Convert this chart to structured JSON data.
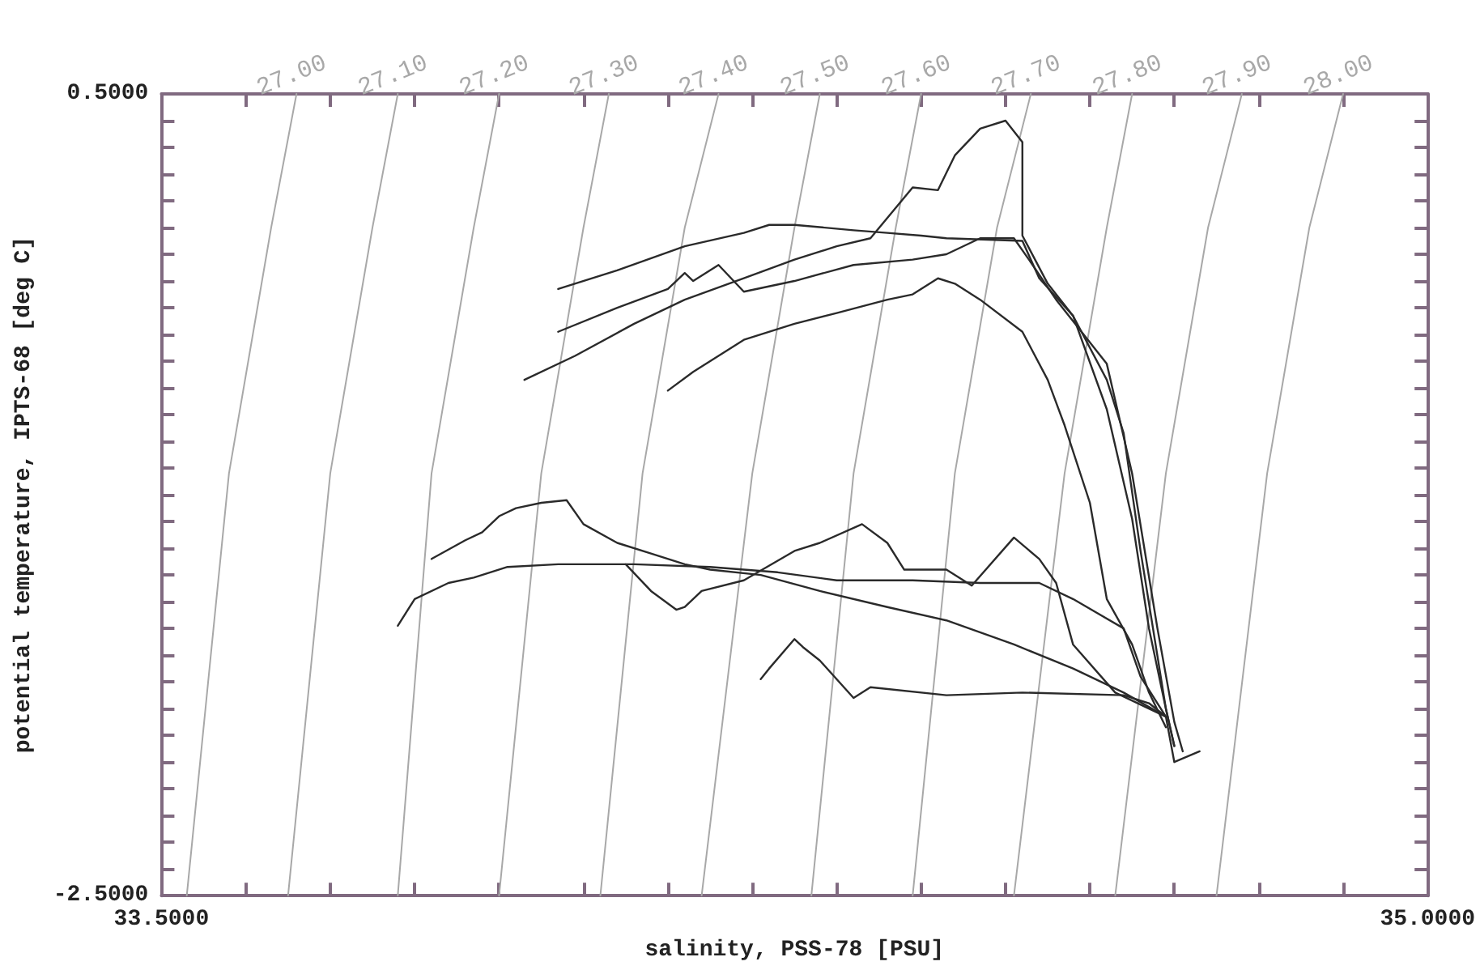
{
  "chart_data": {
    "type": "line",
    "xlabel": "salinity, PSS-78 [PSU]",
    "ylabel": "potential temperature, IPTS-68 [deg C]",
    "xlim": [
      33.5,
      35.0
    ],
    "ylim": [
      -2.5,
      0.5
    ],
    "xticks": [
      {
        "value": 33.5,
        "label": "33.5000"
      },
      {
        "value": 33.6,
        "label": null
      },
      {
        "value": 33.7,
        "label": null
      },
      {
        "value": 33.8,
        "label": null
      },
      {
        "value": 33.9,
        "label": null
      },
      {
        "value": 34.0,
        "label": null
      },
      {
        "value": 34.1,
        "label": null
      },
      {
        "value": 34.2,
        "label": null
      },
      {
        "value": 34.3,
        "label": null
      },
      {
        "value": 34.4,
        "label": null
      },
      {
        "value": 34.5,
        "label": null
      },
      {
        "value": 34.6,
        "label": null
      },
      {
        "value": 34.7,
        "label": null
      },
      {
        "value": 34.8,
        "label": null
      },
      {
        "value": 34.9,
        "label": null
      },
      {
        "value": 35.0,
        "label": "35.0000"
      }
    ],
    "yticks": [
      {
        "value": 0.5,
        "label": "0.5000"
      },
      {
        "value": 0.4,
        "label": null
      },
      {
        "value": 0.3,
        "label": null
      },
      {
        "value": 0.2,
        "label": null
      },
      {
        "value": 0.1,
        "label": null
      },
      {
        "value": 0,
        "label": null
      },
      {
        "value": -0.1,
        "label": null
      },
      {
        "value": -0.2,
        "label": null
      },
      {
        "value": -0.3,
        "label": null
      },
      {
        "value": -0.4,
        "label": null
      },
      {
        "value": -0.5,
        "label": null
      },
      {
        "value": -0.6,
        "label": null
      },
      {
        "value": -0.7,
        "label": null
      },
      {
        "value": -0.8,
        "label": null
      },
      {
        "value": -0.9,
        "label": null
      },
      {
        "value": -1.0,
        "label": null
      },
      {
        "value": -1.1,
        "label": null
      },
      {
        "value": -1.2,
        "label": null
      },
      {
        "value": -1.3,
        "label": null
      },
      {
        "value": -1.4,
        "label": null
      },
      {
        "value": -1.5,
        "label": null
      },
      {
        "value": -1.6,
        "label": null
      },
      {
        "value": -1.7,
        "label": null
      },
      {
        "value": -1.8,
        "label": null
      },
      {
        "value": -1.9,
        "label": null
      },
      {
        "value": -2.0,
        "label": null
      },
      {
        "value": -2.1,
        "label": null
      },
      {
        "value": -2.2,
        "label": null
      },
      {
        "value": -2.3,
        "label": null
      },
      {
        "value": -2.4,
        "label": null
      },
      {
        "value": -2.5,
        "label": "-2.5000"
      }
    ],
    "grid": false,
    "legend": false,
    "marker": "none",
    "line_style": "solid",
    "series": [
      {
        "name": "27.00",
        "color": "#a8a8a8",
        "x": [
          33.66,
          33.63,
          33.58,
          33.53
        ],
        "values": [
          0.5,
          0.0,
          -0.92,
          -2.5
        ]
      },
      {
        "name": "27.10",
        "color": "#a8a8a8",
        "x": [
          33.78,
          33.75,
          33.7,
          33.65
        ],
        "values": [
          0.5,
          0.0,
          -0.92,
          -2.5
        ]
      },
      {
        "name": "27.20",
        "color": "#a8a8a8",
        "x": [
          33.9,
          33.87,
          33.82,
          33.78
        ],
        "values": [
          0.5,
          0.0,
          -0.92,
          -2.5
        ]
      },
      {
        "name": "27.30",
        "color": "#a8a8a8",
        "x": [
          34.03,
          34.0,
          33.95,
          33.9
        ],
        "values": [
          0.5,
          0.0,
          -0.92,
          -2.5
        ]
      },
      {
        "name": "27.40",
        "color": "#a8a8a8",
        "x": [
          34.16,
          34.12,
          34.07,
          34.02
        ],
        "values": [
          0.5,
          0.0,
          -0.92,
          -2.5
        ]
      },
      {
        "name": "27.50",
        "color": "#a8a8a8",
        "x": [
          34.28,
          34.25,
          34.2,
          34.14
        ],
        "values": [
          0.5,
          0.0,
          -0.92,
          -2.5
        ]
      },
      {
        "name": "27.60",
        "color": "#a8a8a8",
        "x": [
          34.4,
          34.37,
          34.32,
          34.27
        ],
        "values": [
          0.5,
          0.0,
          -0.92,
          -2.5
        ]
      },
      {
        "name": "27.70",
        "color": "#a8a8a8",
        "x": [
          34.53,
          34.49,
          34.44,
          34.39
        ],
        "values": [
          0.5,
          0.0,
          -0.92,
          -2.5
        ]
      },
      {
        "name": "27.80",
        "color": "#a8a8a8",
        "x": [
          34.65,
          34.62,
          34.57,
          34.51
        ],
        "values": [
          0.5,
          0.0,
          -0.92,
          -2.5
        ]
      },
      {
        "name": "27.90",
        "color": "#a8a8a8",
        "x": [
          34.78,
          34.74,
          34.69,
          34.63
        ],
        "values": [
          0.5,
          0.0,
          -0.92,
          -2.5
        ]
      },
      {
        "name": "28.00",
        "color": "#a8a8a8",
        "x": [
          34.9,
          34.86,
          34.81,
          34.75
        ],
        "values": [
          0.5,
          0.0,
          -0.92,
          -2.5
        ]
      },
      {
        "color": "#2a2a2a",
        "x": [
          33.97,
          34.04,
          34.12,
          34.19,
          34.22,
          34.25,
          34.32,
          34.36,
          34.4,
          34.43,
          34.52,
          34.54,
          34.58,
          34.62,
          34.65,
          34.67,
          34.69,
          34.7
        ],
        "values": [
          -0.23,
          -0.16,
          -0.07,
          -0.02,
          0.01,
          0.01,
          -0.01,
          -0.02,
          -0.03,
          -0.04,
          -0.05,
          -0.19,
          -0.33,
          -0.68,
          -1.09,
          -1.5,
          -1.8,
          -1.94
        ]
      },
      {
        "color": "#2a2a2a",
        "x": [
          33.97,
          34.04,
          34.1,
          34.12,
          34.13,
          34.16,
          34.19,
          34.25,
          34.32,
          34.39,
          34.43,
          34.47,
          34.51,
          34.53,
          34.56,
          34.62,
          34.65,
          34.68,
          34.7,
          34.71
        ],
        "values": [
          -0.39,
          -0.3,
          -0.23,
          -0.17,
          -0.2,
          -0.14,
          -0.24,
          -0.2,
          -0.14,
          -0.12,
          -0.1,
          -0.04,
          -0.04,
          -0.13,
          -0.27,
          -0.51,
          -0.92,
          -1.5,
          -1.85,
          -1.96
        ]
      },
      {
        "color": "#2a2a2a",
        "x": [
          33.93,
          33.99,
          34.06,
          34.12,
          34.19,
          34.25,
          34.3,
          34.34,
          34.39,
          34.42,
          34.44,
          34.47,
          34.5,
          34.52,
          34.52,
          34.55,
          34.58,
          34.62,
          34.64,
          34.66,
          34.69,
          34.7
        ],
        "values": [
          -0.57,
          -0.48,
          -0.36,
          -0.27,
          -0.19,
          -0.12,
          -0.07,
          -0.04,
          0.15,
          0.14,
          0.27,
          0.37,
          0.4,
          0.32,
          -0.03,
          -0.21,
          -0.33,
          -0.57,
          -0.77,
          -1.21,
          -1.8,
          -1.94
        ]
      },
      {
        "color": "#2a2a2a",
        "x": [
          34.1,
          34.13,
          34.19,
          34.25,
          34.3,
          34.36,
          34.39,
          34.42,
          34.44,
          34.47,
          34.52,
          34.55,
          34.57,
          34.6,
          34.62,
          34.65,
          34.67,
          34.69
        ],
        "values": [
          -0.61,
          -0.54,
          -0.42,
          -0.36,
          -0.32,
          -0.27,
          -0.25,
          -0.19,
          -0.21,
          -0.27,
          -0.39,
          -0.57,
          -0.74,
          -1.03,
          -1.39,
          -1.56,
          -1.74,
          -1.87
        ]
      },
      {
        "color": "#2a2a2a",
        "x": [
          33.82,
          33.86,
          33.88,
          33.9,
          33.92,
          33.95,
          33.98,
          34.0,
          34.04,
          34.08,
          34.12,
          34.15,
          34.21,
          34.28,
          34.36,
          34.43,
          34.51,
          34.58,
          34.64,
          34.69
        ],
        "values": [
          -1.24,
          -1.17,
          -1.14,
          -1.08,
          -1.05,
          -1.03,
          -1.02,
          -1.11,
          -1.18,
          -1.22,
          -1.26,
          -1.28,
          -1.3,
          -1.36,
          -1.42,
          -1.47,
          -1.56,
          -1.65,
          -1.74,
          -1.83
        ]
      },
      {
        "color": "#2a2a2a",
        "x": [
          33.78,
          33.8,
          33.84,
          33.87,
          33.91,
          33.97,
          34.06,
          34.15,
          34.23,
          34.3,
          34.39,
          34.47,
          34.54,
          34.58,
          34.64,
          34.66,
          34.69
        ],
        "values": [
          -1.49,
          -1.39,
          -1.33,
          -1.31,
          -1.27,
          -1.26,
          -1.26,
          -1.27,
          -1.29,
          -1.32,
          -1.32,
          -1.33,
          -1.33,
          -1.39,
          -1.5,
          -1.68,
          -1.83
        ]
      },
      {
        "color": "#2a2a2a",
        "x": [
          34.05,
          34.08,
          34.11,
          34.12,
          34.14,
          34.19,
          34.25,
          34.28,
          34.33,
          34.36,
          34.38,
          34.43,
          34.46,
          34.51,
          34.54,
          34.56,
          34.58,
          34.63,
          34.69
        ],
        "values": [
          -1.26,
          -1.36,
          -1.43,
          -1.42,
          -1.36,
          -1.32,
          -1.21,
          -1.18,
          -1.11,
          -1.18,
          -1.28,
          -1.28,
          -1.34,
          -1.16,
          -1.24,
          -1.33,
          -1.56,
          -1.74,
          -1.83
        ]
      },
      {
        "color": "#2a2a2a",
        "x": [
          34.21,
          34.22,
          34.25,
          34.26,
          34.28,
          34.32,
          34.34,
          34.43,
          34.52,
          34.64,
          34.67,
          34.69,
          34.7,
          34.73
        ],
        "values": [
          -1.69,
          -1.65,
          -1.54,
          -1.57,
          -1.62,
          -1.76,
          -1.72,
          -1.75,
          -1.74,
          -1.75,
          -1.78,
          -1.83,
          -2.0,
          -1.96
        ]
      }
    ]
  }
}
